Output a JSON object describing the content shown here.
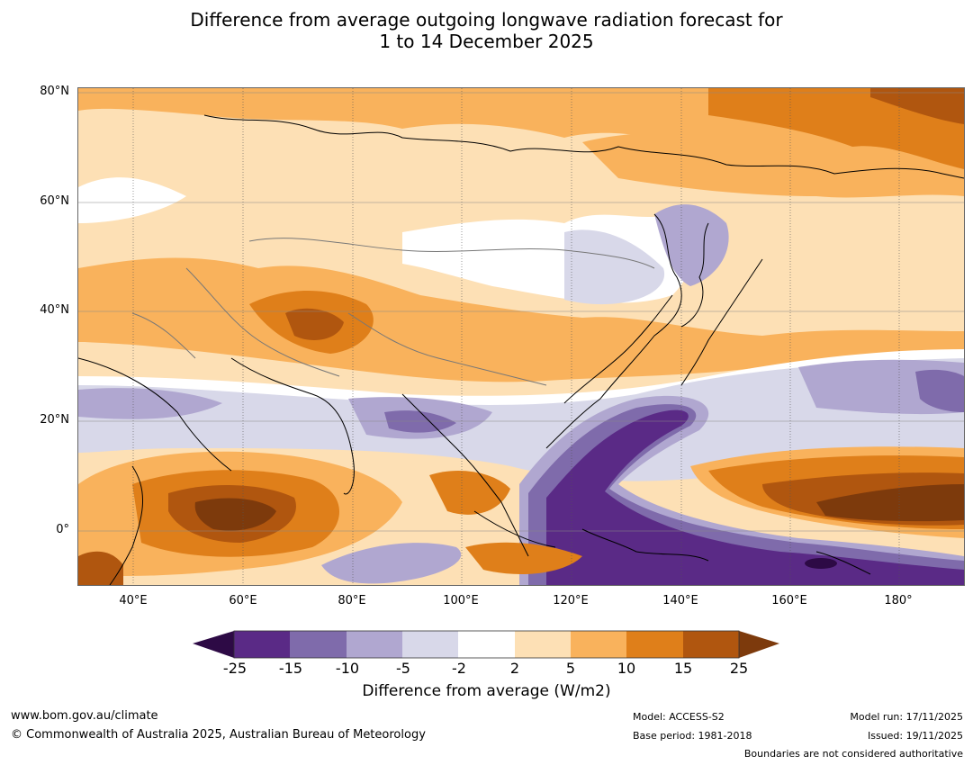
{
  "title": {
    "line1": "Difference from average outgoing longwave radiation forecast for",
    "line2": "1 to 14 December 2025"
  },
  "axes": {
    "lat_labels": [
      "80°N",
      "60°N",
      "40°N",
      "20°N",
      "0°"
    ],
    "lon_labels": [
      "40°E",
      "60°E",
      "80°E",
      "100°E",
      "120°E",
      "140°E",
      "160°E",
      "180°"
    ]
  },
  "colorbar": {
    "ticks": [
      "-25",
      "-15",
      "-10",
      "-5",
      "-2",
      "2",
      "5",
      "10",
      "15",
      "25"
    ],
    "colors": {
      "below_min": "#2d0a45",
      "n25_n15": "#5a2a86",
      "n15_n10": "#7f6bab",
      "n10_n5": "#b0a7d0",
      "n5_n2": "#d8d8e9",
      "n2_2": "#ffffff",
      "p2_5": "#fde0b5",
      "p5_10": "#f9b25c",
      "p10_15": "#df7f1a",
      "p15_25": "#b0560f",
      "above_max": "#7d3a0c"
    },
    "label": "Difference from average (W/m2)"
  },
  "footer": {
    "website": "www.bom.gov.au/climate",
    "copyright": "© Commonwealth of Australia 2025, Australian Bureau of Meteorology",
    "model": "Model: ACCESS-S2",
    "base_period": "Base period: 1981-2018",
    "model_run": "Model run: 17/11/2025",
    "issued": "Issued: 19/11/2025",
    "disclaimer": "Boundaries are not considered authoritative"
  }
}
